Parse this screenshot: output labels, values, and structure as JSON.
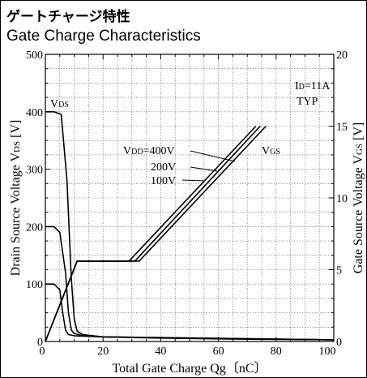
{
  "title_jp": "ゲートチャージ特性",
  "title_en": "Gate Charge Characteristics",
  "chart_data": {
    "type": "line",
    "xlabel": "Total Gate Charge  Qg〔nC〕",
    "ylabel_left": "Drain Source Voltage V",
    "ylabel_left_sub": "DS",
    "ylabel_left_unit": " [V]",
    "ylabel_right": "Gate Source Voltage V",
    "ylabel_right_sub": "GS",
    "ylabel_right_unit": " [V]",
    "xlim": [
      0,
      100
    ],
    "ylim_left": [
      0,
      500
    ],
    "ylim_right": [
      0,
      20
    ],
    "x_ticks": [
      "0",
      "20",
      "40",
      "60",
      "80",
      "100"
    ],
    "y_left_ticks": [
      "0",
      "100",
      "200",
      "300",
      "400",
      "500"
    ],
    "y_right_ticks": [
      "0",
      "5",
      "10",
      "15",
      "20"
    ],
    "grid": true,
    "annotations": {
      "cond_id": "I",
      "cond_id_sub": "D",
      "cond_id_val": "=11A",
      "cond_typ": "TYP",
      "vds_main": "V",
      "vds_sub": "DS",
      "vgs_main": "V",
      "vgs_sub": "GS",
      "vdd_prefix": "V",
      "vdd_sub": "DD",
      "vdd_400": "=400V",
      "vdd_200": "200V",
      "vdd_100": "100V"
    },
    "series": [
      {
        "axis": "left",
        "x": [
          0,
          3,
          5.5,
          7.5,
          9,
          10,
          11,
          13,
          20,
          40,
          70,
          100
        ],
        "y": [
          400,
          400,
          395,
          280,
          110,
          40,
          18,
          12,
          8,
          6,
          4,
          3
        ]
      },
      {
        "axis": "left",
        "x": [
          0,
          3,
          5,
          7,
          8,
          9,
          10,
          13,
          20,
          100
        ],
        "y": [
          200,
          200,
          190,
          120,
          50,
          20,
          14,
          10,
          8,
          3
        ]
      },
      {
        "axis": "left",
        "x": [
          0,
          3,
          5,
          6,
          7,
          8,
          10,
          20,
          100
        ],
        "y": [
          100,
          100,
          90,
          50,
          20,
          12,
          10,
          8,
          3
        ]
      },
      {
        "axis": "right",
        "x": [
          0,
          11,
          29,
          73
        ],
        "y": [
          0,
          5.6,
          5.6,
          15
        ]
      },
      {
        "axis": "right",
        "x": [
          0,
          11,
          31,
          74.5
        ],
        "y": [
          0,
          5.6,
          5.6,
          15
        ]
      },
      {
        "axis": "right",
        "x": [
          0,
          11,
          32.5,
          76.5
        ],
        "y": [
          0,
          5.6,
          5.6,
          15
        ]
      }
    ]
  }
}
